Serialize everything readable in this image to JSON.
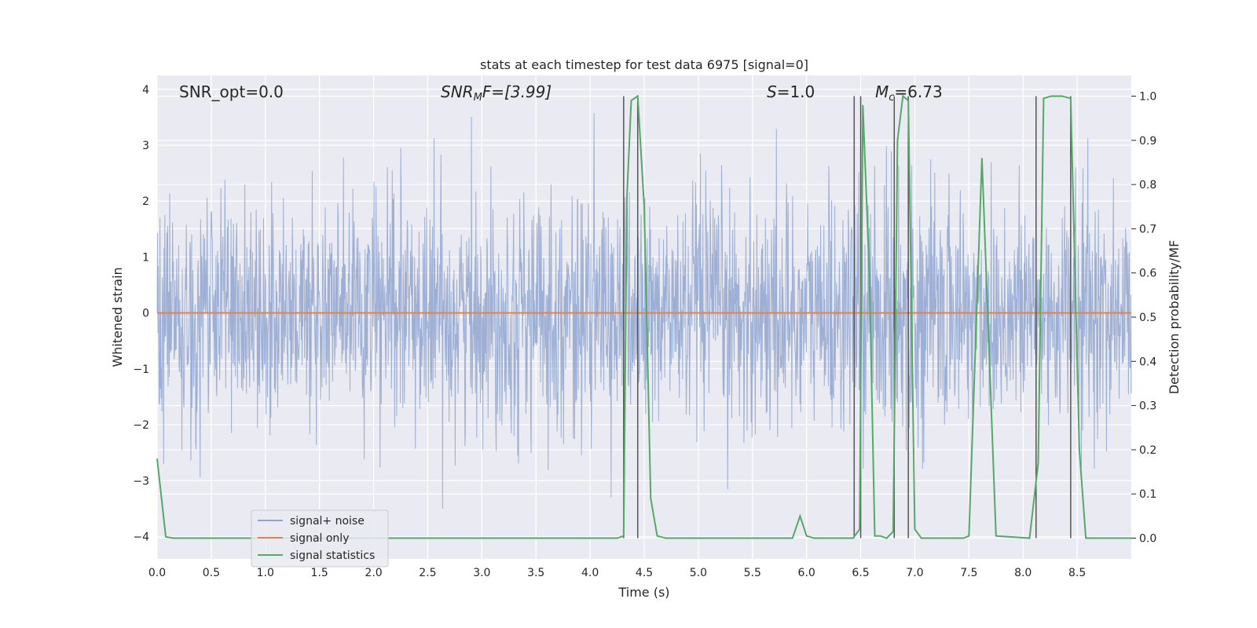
{
  "chart_data": {
    "type": "line",
    "title": "stats at each timestep for test data 6975 [signal=0]",
    "xlabel": "Time (s)",
    "ylabel_left": "Whitened strain",
    "ylabel_right": "Detection probability/MF",
    "xlim": [
      0.0,
      9.0
    ],
    "ylim_left": [
      -4.4,
      4.25
    ],
    "ylim_right": [
      -0.047,
      1.047
    ],
    "x_ticks": [
      0.0,
      0.5,
      1.0,
      1.5,
      2.0,
      2.5,
      3.0,
      3.5,
      4.0,
      4.5,
      5.0,
      5.5,
      6.0,
      6.5,
      7.0,
      7.5,
      8.0,
      8.5
    ],
    "x_tick_labels": [
      "0.0",
      "0.5",
      "1.0",
      "1.5",
      "2.0",
      "2.5",
      "3.0",
      "3.5",
      "4.0",
      "4.5",
      "5.0",
      "5.5",
      "6.0",
      "6.5",
      "7.0",
      "7.5",
      "8.0",
      "8.5"
    ],
    "y_left_ticks": [
      -4,
      -3,
      -2,
      -1,
      0,
      1,
      2,
      3,
      4
    ],
    "y_left_tick_labels": [
      "−4",
      "−3",
      "−2",
      "−1",
      "0",
      "1",
      "2",
      "3",
      "4"
    ],
    "y_right_ticks": [
      0.0,
      0.1,
      0.2,
      0.3,
      0.4,
      0.5,
      0.6,
      0.7,
      0.8,
      0.9,
      1.0
    ],
    "y_right_tick_labels": [
      "0.0",
      "0.1",
      "0.2",
      "0.3",
      "0.4",
      "0.5",
      "0.6",
      "0.7",
      "0.8",
      "0.9",
      "1.0"
    ],
    "grid": true,
    "legend_position": "lower-left",
    "annotations": {
      "snr_opt": "SNR_opt=0.0",
      "snr_mf_main": "SNR",
      "snr_mf_sub": "M",
      "snr_mf_rest": "F=[3.99]",
      "s_main": "S",
      "s_rest": "=1.0",
      "mc_main": "M",
      "mc_sub": "c",
      "mc_rest": "=6.73"
    },
    "series": [
      {
        "name": "signal+ noise",
        "axis": "left",
        "color": "#8fa5cf",
        "note": "dense white-noise strain trace, amplitude approximately within [-3.5, 3.9]"
      },
      {
        "name": "signal only",
        "axis": "left",
        "color": "#dd8452",
        "x": [
          0.0,
          9.0
        ],
        "values": [
          0.0,
          0.0
        ]
      },
      {
        "name": "signal statistics",
        "axis": "right",
        "color": "#55a868",
        "x": [
          0.0,
          0.08,
          0.15,
          4.25,
          4.31,
          4.34,
          4.38,
          4.44,
          4.5,
          4.56,
          4.62,
          4.7,
          5.87,
          5.94,
          6.0,
          6.07,
          6.43,
          6.49,
          6.52,
          6.58,
          6.63,
          6.68,
          6.74,
          6.8,
          6.84,
          6.89,
          6.94,
          7.0,
          7.06,
          7.45,
          7.5,
          7.62,
          7.75,
          8.06,
          8.14,
          8.19,
          8.26,
          8.36,
          8.44,
          8.52,
          8.58,
          9.0
        ],
        "values": [
          0.18,
          0.003,
          0.0,
          0.0,
          0.005,
          0.77,
          0.99,
          1.0,
          0.75,
          0.09,
          0.005,
          0.0,
          0.0,
          0.05,
          0.005,
          0.0,
          0.0,
          0.02,
          0.98,
          0.6,
          0.005,
          0.005,
          0.0,
          0.015,
          0.9,
          1.0,
          0.99,
          0.02,
          0.0,
          0.0,
          0.005,
          0.86,
          0.005,
          0.0,
          0.17,
          0.995,
          1.0,
          1.0,
          0.995,
          0.2,
          0.0,
          0.0
        ]
      }
    ],
    "vertical_markers": [
      4.31,
      4.44,
      6.44,
      6.5,
      6.81,
      6.94,
      8.12,
      8.44
    ],
    "colors": {
      "plot_background": "#eaeaf2",
      "grid": "#ffffff",
      "marker_lines": "#555555"
    }
  }
}
